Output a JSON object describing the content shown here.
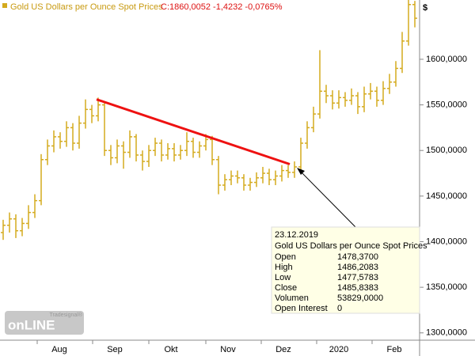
{
  "chart_data": {
    "type": "ohlc",
    "title": "Gold US Dollars per Ounce Spot Prices",
    "quote": "C:1860,0052 -1,4232 -0,0765%",
    "currency": "$",
    "color": "#d4aa1e",
    "xlim": [
      -0.5,
      65.5
    ],
    "xticks": [
      {
        "value": 5.375,
        "label": "Aug"
      },
      {
        "value": 14.125,
        "label": "Sep"
      },
      {
        "value": 23,
        "label": "Okt"
      },
      {
        "value": 32,
        "label": "Nov"
      },
      {
        "value": 40.75,
        "label": "Dez"
      },
      {
        "value": 49.5,
        "label": "2020"
      },
      {
        "value": 58.25,
        "label": "Feb"
      }
    ],
    "ylim": [
      1292,
      1665
    ],
    "yticks": [
      {
        "value": 1300,
        "label": "1300,0000"
      },
      {
        "value": 1350,
        "label": "1350,0000"
      },
      {
        "value": 1400,
        "label": "1400,0000"
      },
      {
        "value": 1450,
        "label": "1450,0000"
      },
      {
        "value": 1500,
        "label": "1500,0000"
      },
      {
        "value": 1550,
        "label": "1550,0000"
      },
      {
        "value": 1600,
        "label": "1600,0000"
      }
    ],
    "open": [
      1410,
      1418,
      1425,
      1412,
      1420,
      1432,
      1445,
      1490,
      1505,
      1515,
      1510,
      1525,
      1508,
      1530,
      1545,
      1538,
      1550,
      1500,
      1492,
      1505,
      1498,
      1515,
      1495,
      1488,
      1500,
      1508,
      1495,
      1502,
      1495,
      1500,
      1510,
      1498,
      1505,
      1512,
      1490,
      1462,
      1468,
      1472,
      1470,
      1462,
      1465,
      1470,
      1475,
      1468,
      1472,
      1478,
      1476,
      1482,
      1508,
      1525,
      1540,
      1565,
      1560,
      1552,
      1558,
      1555,
      1560,
      1548,
      1562,
      1565,
      1555,
      1568,
      1575,
      1590,
      1620,
      1660
    ],
    "high": [
      1424,
      1432,
      1430,
      1426,
      1440,
      1452,
      1496,
      1512,
      1522,
      1520,
      1532,
      1530,
      1538,
      1556,
      1550,
      1558,
      1554,
      1506,
      1512,
      1510,
      1522,
      1518,
      1500,
      1506,
      1514,
      1512,
      1508,
      1508,
      1506,
      1520,
      1514,
      1510,
      1518,
      1516,
      1494,
      1474,
      1478,
      1478,
      1474,
      1470,
      1476,
      1482,
      1480,
      1478,
      1484,
      1484,
      1488,
      1514,
      1532,
      1548,
      1610,
      1572,
      1566,
      1566,
      1564,
      1568,
      1564,
      1570,
      1574,
      1570,
      1576,
      1584,
      1598,
      1630,
      1665,
      1664
    ],
    "low": [
      1402,
      1410,
      1404,
      1406,
      1414,
      1426,
      1440,
      1484,
      1498,
      1502,
      1504,
      1500,
      1502,
      1524,
      1530,
      1532,
      1494,
      1484,
      1486,
      1480,
      1492,
      1488,
      1478,
      1482,
      1494,
      1488,
      1490,
      1488,
      1490,
      1494,
      1492,
      1492,
      1500,
      1484,
      1452,
      1456,
      1462,
      1464,
      1456,
      1456,
      1460,
      1464,
      1462,
      1462,
      1466,
      1470,
      1470,
      1478,
      1502,
      1520,
      1535,
      1552,
      1545,
      1546,
      1548,
      1550,
      1540,
      1542,
      1556,
      1548,
      1550,
      1562,
      1570,
      1585,
      1615,
      1635
    ],
    "close": [
      1418,
      1425,
      1412,
      1420,
      1432,
      1445,
      1490,
      1505,
      1515,
      1510,
      1525,
      1508,
      1530,
      1545,
      1538,
      1550,
      1500,
      1492,
      1505,
      1498,
      1515,
      1495,
      1488,
      1500,
      1508,
      1495,
      1502,
      1495,
      1500,
      1510,
      1498,
      1505,
      1512,
      1490,
      1462,
      1468,
      1472,
      1470,
      1462,
      1465,
      1470,
      1475,
      1468,
      1472,
      1478,
      1476,
      1482,
      1508,
      1525,
      1540,
      1565,
      1560,
      1552,
      1558,
      1555,
      1560,
      1548,
      1562,
      1565,
      1555,
      1568,
      1575,
      1590,
      1620,
      1660,
      1645
    ],
    "trendline": {
      "x": [
        14.75,
        45.25
      ],
      "y": [
        1556,
        1485
      ],
      "color": "#ee1111"
    },
    "tooltip": {
      "date": "23.12.2019",
      "name": "Gold US Dollars per Ounce Spot Prices",
      "rows": [
        [
          "Open",
          "1478,3700"
        ],
        [
          "High",
          "1486,2083"
        ],
        [
          "Low",
          "1477,5783"
        ],
        [
          "Close",
          "1485,8383"
        ],
        [
          "Volumen",
          "53829,0000"
        ],
        [
          "Open Interest",
          "0"
        ]
      ]
    },
    "logo": {
      "small": "Tradesignal®",
      "big": "onLINE"
    }
  }
}
